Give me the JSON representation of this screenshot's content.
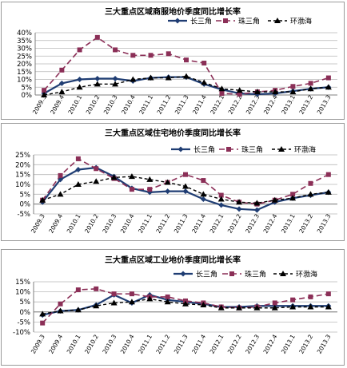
{
  "colors": {
    "yangtze": "#1f3d73",
    "pearl": "#8b2f57",
    "bohai": "#000000",
    "grid": "#b8b8b8",
    "axis": "#7f7f7f"
  },
  "chart_data": [
    {
      "type": "line",
      "title": "三大重点区域商服地价季度同比增长率",
      "categories": [
        "2009.3",
        "2009.4",
        "2010.1",
        "2010.2",
        "2010.3",
        "2010.4",
        "2011.1",
        "2011.2",
        "2011.3",
        "2011.4",
        "2012.1",
        "2012.2",
        "2012.3",
        "2012.4",
        "2013.1",
        "2013.2",
        "2013.3"
      ],
      "ylim": [
        0,
        40
      ],
      "yticks": [
        0,
        5,
        10,
        15,
        20,
        25,
        30,
        35,
        40
      ],
      "ytick_labels": [
        "0%",
        "5%",
        "10%",
        "15%",
        "20%",
        "25%",
        "30%",
        "35%",
        "40%"
      ],
      "grid": true,
      "legend_position": "top-right",
      "series": [
        {
          "name": "长三角",
          "values": [
            1,
            7.5,
            10,
            10.5,
            10.5,
            9,
            11,
            11.5,
            11.5,
            7,
            3.5,
            1,
            0.5,
            1,
            2.5,
            4,
            5
          ]
        },
        {
          "name": "珠三角",
          "values": [
            3,
            16,
            29,
            37,
            29,
            25.5,
            25.5,
            26.5,
            22.5,
            20.5,
            1,
            0.5,
            2,
            3,
            5.5,
            7.5,
            11
          ]
        },
        {
          "name": "环渤海",
          "values": [
            0,
            2,
            5,
            7,
            7,
            10,
            11,
            11,
            12,
            8,
            4,
            3,
            2,
            2,
            2,
            4,
            5
          ]
        }
      ]
    },
    {
      "type": "line",
      "title": "三大重点区域住宅地价季度同比增长率",
      "categories": [
        "2009.3",
        "2009.4",
        "2010.1",
        "2010.2",
        "2010.3",
        "2010.4",
        "2011.1",
        "2011.2",
        "2011.3",
        "2011.4",
        "2012.1",
        "2012.2",
        "2012.3",
        "2012.4",
        "2013.1",
        "2013.2",
        "2013.3"
      ],
      "ylim": [
        -5,
        25
      ],
      "yticks": [
        -5,
        0,
        5,
        10,
        15,
        20,
        25
      ],
      "ytick_labels": [
        "-5%",
        "0%",
        "5%",
        "10%",
        "15%",
        "20%",
        "25%"
      ],
      "grid": true,
      "legend_position": "top-right",
      "series": [
        {
          "name": "长三角",
          "values": [
            1,
            12.5,
            17.5,
            18.5,
            14,
            8,
            6,
            6.5,
            6.5,
            2.5,
            -0.5,
            -2.5,
            -3,
            1,
            3,
            4.5,
            6
          ]
        },
        {
          "name": "珠三角",
          "values": [
            2,
            14.5,
            23,
            18,
            13,
            7.5,
            7.5,
            11,
            15,
            12,
            4.5,
            1,
            0,
            2,
            5,
            10.5,
            15
          ]
        },
        {
          "name": "环渤海",
          "values": [
            2,
            5,
            10,
            11.5,
            13.5,
            14,
            12.5,
            11,
            9,
            5,
            2.5,
            1,
            0.5,
            2,
            3,
            5,
            6
          ]
        }
      ]
    },
    {
      "type": "line",
      "title": "三大重点区域工业地价季度同比增长率",
      "categories": [
        "2009.3",
        "2009.4",
        "2010.1",
        "2010.2",
        "2010.3",
        "2010.4",
        "2011.1",
        "2011.2",
        "2011.3",
        "2011.4",
        "2012.1",
        "2012.2",
        "2012.3",
        "2012.4",
        "2013.1",
        "2013.2",
        "2013.3"
      ],
      "ylim": [
        -10,
        15
      ],
      "yticks": [
        -10,
        -5,
        0,
        5,
        10,
        15
      ],
      "ytick_labels": [
        "-10%",
        "-5%",
        "0%",
        "5%",
        "10%",
        "15%"
      ],
      "grid": true,
      "legend_position": "top-right",
      "series": [
        {
          "name": "长三角",
          "values": [
            -1.5,
            0.5,
            1,
            3.5,
            8.5,
            4.5,
            8.5,
            6,
            5,
            4,
            2.5,
            2.5,
            3,
            3,
            3,
            3,
            3
          ]
        },
        {
          "name": "珠三角",
          "values": [
            -5.5,
            4,
            11,
            11.5,
            9,
            9,
            7.5,
            7.5,
            5.5,
            4.5,
            2.5,
            2,
            2.5,
            4.5,
            6,
            7.5,
            9
          ]
        },
        {
          "name": "环渤海",
          "values": [
            -1,
            0.5,
            1,
            3,
            4.5,
            5,
            6.5,
            5,
            4,
            3.5,
            2,
            2,
            2,
            2,
            2.5,
            2.5,
            2.5
          ]
        }
      ]
    }
  ]
}
